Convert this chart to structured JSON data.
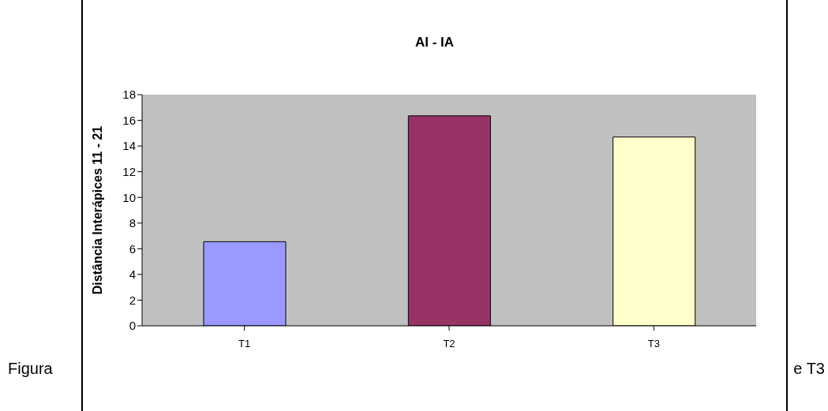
{
  "chart_data": {
    "type": "bar",
    "title": "AI - IA",
    "ylabel": "Distância Interápices 11 - 21",
    "categories": [
      "T1",
      "T2",
      "T3"
    ],
    "values": [
      6.55,
      16.35,
      14.7
    ],
    "colors": [
      "#9999ff",
      "#993366",
      "#ffffcc"
    ],
    "ylim": [
      0,
      18
    ],
    "yticks": [
      0,
      2,
      4,
      6,
      8,
      10,
      12,
      14,
      16,
      18
    ],
    "grid": false,
    "annotations": [
      "Figura",
      "e T3"
    ]
  }
}
